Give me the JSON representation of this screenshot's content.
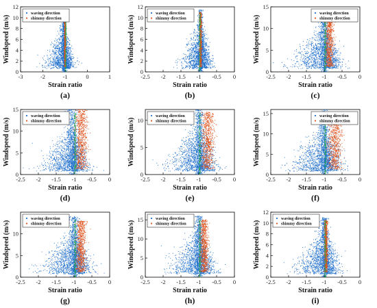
{
  "figure": {
    "xlabel": "Strain ratio",
    "ylabel": "Windspeed (m/s)",
    "legend": [
      "waving direction",
      "shimmy direction"
    ]
  },
  "colors": {
    "waving": "#1f6fcc",
    "shimmy": "#e0531c",
    "band": "#2aa84a"
  },
  "chart_data": [
    {
      "id": "a",
      "type": "scatter",
      "panel_label": "(a)",
      "xlabel": "Strain ratio",
      "ylabel": "Windspeed (m/s)",
      "xlim": [
        -3,
        1
      ],
      "ylim": [
        0,
        12
      ],
      "xticks": [
        -3,
        -2,
        -1,
        0,
        1
      ],
      "yticks": [
        0,
        2,
        4,
        6,
        8,
        10,
        12
      ],
      "legend_position": "top-left",
      "series": [
        {
          "name": "waving direction",
          "center_x": -1.05,
          "x_spread": 0.45,
          "y_peak": 10.3,
          "core_width": 0.08
        },
        {
          "name": "shimmy direction",
          "center_x": -1.0,
          "x_spread": 0.04,
          "y_peak": 10.0,
          "core_width": 0.03
        }
      ]
    },
    {
      "id": "b",
      "type": "scatter",
      "panel_label": "(b)",
      "xlabel": "Strain ratio",
      "ylabel": "Windspeed (m/s)",
      "xlim": [
        -2.5,
        0
      ],
      "ylim": [
        0,
        12
      ],
      "xticks": [
        -2.5,
        -2,
        -1.5,
        -1,
        -0.5,
        0
      ],
      "yticks": [
        0,
        2,
        4,
        6,
        8,
        10,
        12
      ],
      "legend_position": "top-left",
      "series": [
        {
          "name": "waving direction",
          "center_x": -0.95,
          "x_spread": 0.3,
          "y_peak": 11.5,
          "core_width": 0.06
        },
        {
          "name": "shimmy direction",
          "center_x": -0.95,
          "x_spread": 0.03,
          "y_peak": 11.0,
          "core_width": 0.03
        }
      ]
    },
    {
      "id": "c",
      "type": "scatter",
      "panel_label": "(c)",
      "xlabel": "Strain ratio",
      "ylabel": "Windspeed (m/s)",
      "xlim": [
        -2.5,
        0
      ],
      "ylim": [
        0,
        15
      ],
      "xticks": [
        -2.5,
        -2,
        -1.5,
        -1,
        -0.5,
        0
      ],
      "yticks": [
        0,
        5,
        10,
        15
      ],
      "legend_position": "top-right",
      "series": [
        {
          "name": "waving direction",
          "center_x": -1.0,
          "x_spread": 0.5,
          "y_peak": 13.5,
          "core_width": 0.1
        },
        {
          "name": "shimmy direction",
          "center_x": -0.85,
          "x_spread": 0.12,
          "y_peak": 13.0,
          "core_width": 0.1
        }
      ]
    },
    {
      "id": "d",
      "type": "scatter",
      "panel_label": "(d)",
      "xlabel": "Strain ratio",
      "ylabel": "Windspeed (m/s)",
      "xlim": [
        -2.5,
        0
      ],
      "ylim": [
        0,
        15
      ],
      "xticks": [
        -2.5,
        -2,
        -1.5,
        -1,
        -0.5,
        0
      ],
      "yticks": [
        0,
        5,
        10,
        15
      ],
      "legend_position": "top-left",
      "series": [
        {
          "name": "waving direction",
          "center_x": -1.05,
          "x_spread": 0.45,
          "y_peak": 15,
          "core_width": 0.12
        },
        {
          "name": "shimmy direction",
          "center_x": -0.8,
          "x_spread": 0.15,
          "y_peak": 15,
          "core_width": 0.15
        }
      ]
    },
    {
      "id": "e",
      "type": "scatter",
      "panel_label": "(e)",
      "xlabel": "Strain ratio",
      "ylabel": "Windspeed (m/s)",
      "xlim": [
        -2.5,
        0
      ],
      "ylim": [
        0,
        12
      ],
      "xticks": [
        -2.5,
        -2,
        -1.5,
        -1,
        -0.5,
        0
      ],
      "yticks": [
        0,
        5,
        10
      ],
      "legend_position": "top-left",
      "series": [
        {
          "name": "waving direction",
          "center_x": -1.0,
          "x_spread": 0.5,
          "y_peak": 12,
          "core_width": 0.1
        },
        {
          "name": "shimmy direction",
          "center_x": -0.75,
          "x_spread": 0.15,
          "y_peak": 11.5,
          "core_width": 0.15
        }
      ]
    },
    {
      "id": "f",
      "type": "scatter",
      "panel_label": "(f)",
      "xlabel": "Strain ratio",
      "ylabel": "Windspeed (m/s)",
      "xlim": [
        -2.5,
        0
      ],
      "ylim": [
        0,
        16
      ],
      "xticks": [
        -2.5,
        -2,
        -1.5,
        -1,
        -0.5,
        0
      ],
      "yticks": [
        0,
        5,
        10,
        15
      ],
      "legend_position": "top-right",
      "series": [
        {
          "name": "waving direction",
          "center_x": -1.0,
          "x_spread": 0.5,
          "y_peak": 16,
          "core_width": 0.1
        },
        {
          "name": "shimmy direction",
          "center_x": -0.7,
          "x_spread": 0.18,
          "y_peak": 15,
          "core_width": 0.18
        }
      ]
    },
    {
      "id": "g",
      "type": "scatter",
      "panel_label": "(g)",
      "xlabel": "Strain ratio",
      "ylabel": "Windspeed (m/s)",
      "xlim": [
        -2.5,
        0
      ],
      "ylim": [
        0,
        15
      ],
      "xticks": [
        -2.5,
        -2,
        -1.5,
        -1,
        -0.5,
        0
      ],
      "yticks": [
        0,
        5,
        10
      ],
      "legend_position": "top-left",
      "series": [
        {
          "name": "waving direction",
          "center_x": -1.0,
          "x_spread": 0.5,
          "y_peak": 14,
          "core_width": 0.12
        },
        {
          "name": "shimmy direction",
          "center_x": -0.8,
          "x_spread": 0.12,
          "y_peak": 13,
          "core_width": 0.12
        }
      ]
    },
    {
      "id": "h",
      "type": "scatter",
      "panel_label": "(h)",
      "xlabel": "Strain ratio",
      "ylabel": "Windspeed (m/s)",
      "xlim": [
        -2.5,
        0
      ],
      "ylim": [
        0,
        17
      ],
      "xticks": [
        -2.5,
        -2,
        -1.5,
        -1,
        -0.5,
        0
      ],
      "yticks": [
        0,
        5,
        10,
        15
      ],
      "legend_position": "top-left",
      "series": [
        {
          "name": "waving direction",
          "center_x": -1.0,
          "x_spread": 0.45,
          "y_peak": 16,
          "core_width": 0.1
        },
        {
          "name": "shimmy direction",
          "center_x": -0.85,
          "x_spread": 0.1,
          "y_peak": 15,
          "core_width": 0.1
        }
      ]
    },
    {
      "id": "i",
      "type": "scatter",
      "panel_label": "(i)",
      "xlabel": "Strain ratio",
      "ylabel": "Windspeed (m/s)",
      "xlim": [
        -2.5,
        0
      ],
      "ylim": [
        0,
        12
      ],
      "xticks": [
        -2.5,
        -2,
        -1.5,
        -1,
        -0.5,
        0
      ],
      "yticks": [
        0,
        2,
        4,
        6,
        8,
        10,
        12
      ],
      "legend_position": "top-left",
      "series": [
        {
          "name": "waving direction",
          "center_x": -1.0,
          "x_spread": 0.45,
          "y_peak": 11,
          "core_width": 0.08
        },
        {
          "name": "shimmy direction",
          "center_x": -0.95,
          "x_spread": 0.04,
          "y_peak": 10.5,
          "core_width": 0.04
        }
      ]
    }
  ]
}
